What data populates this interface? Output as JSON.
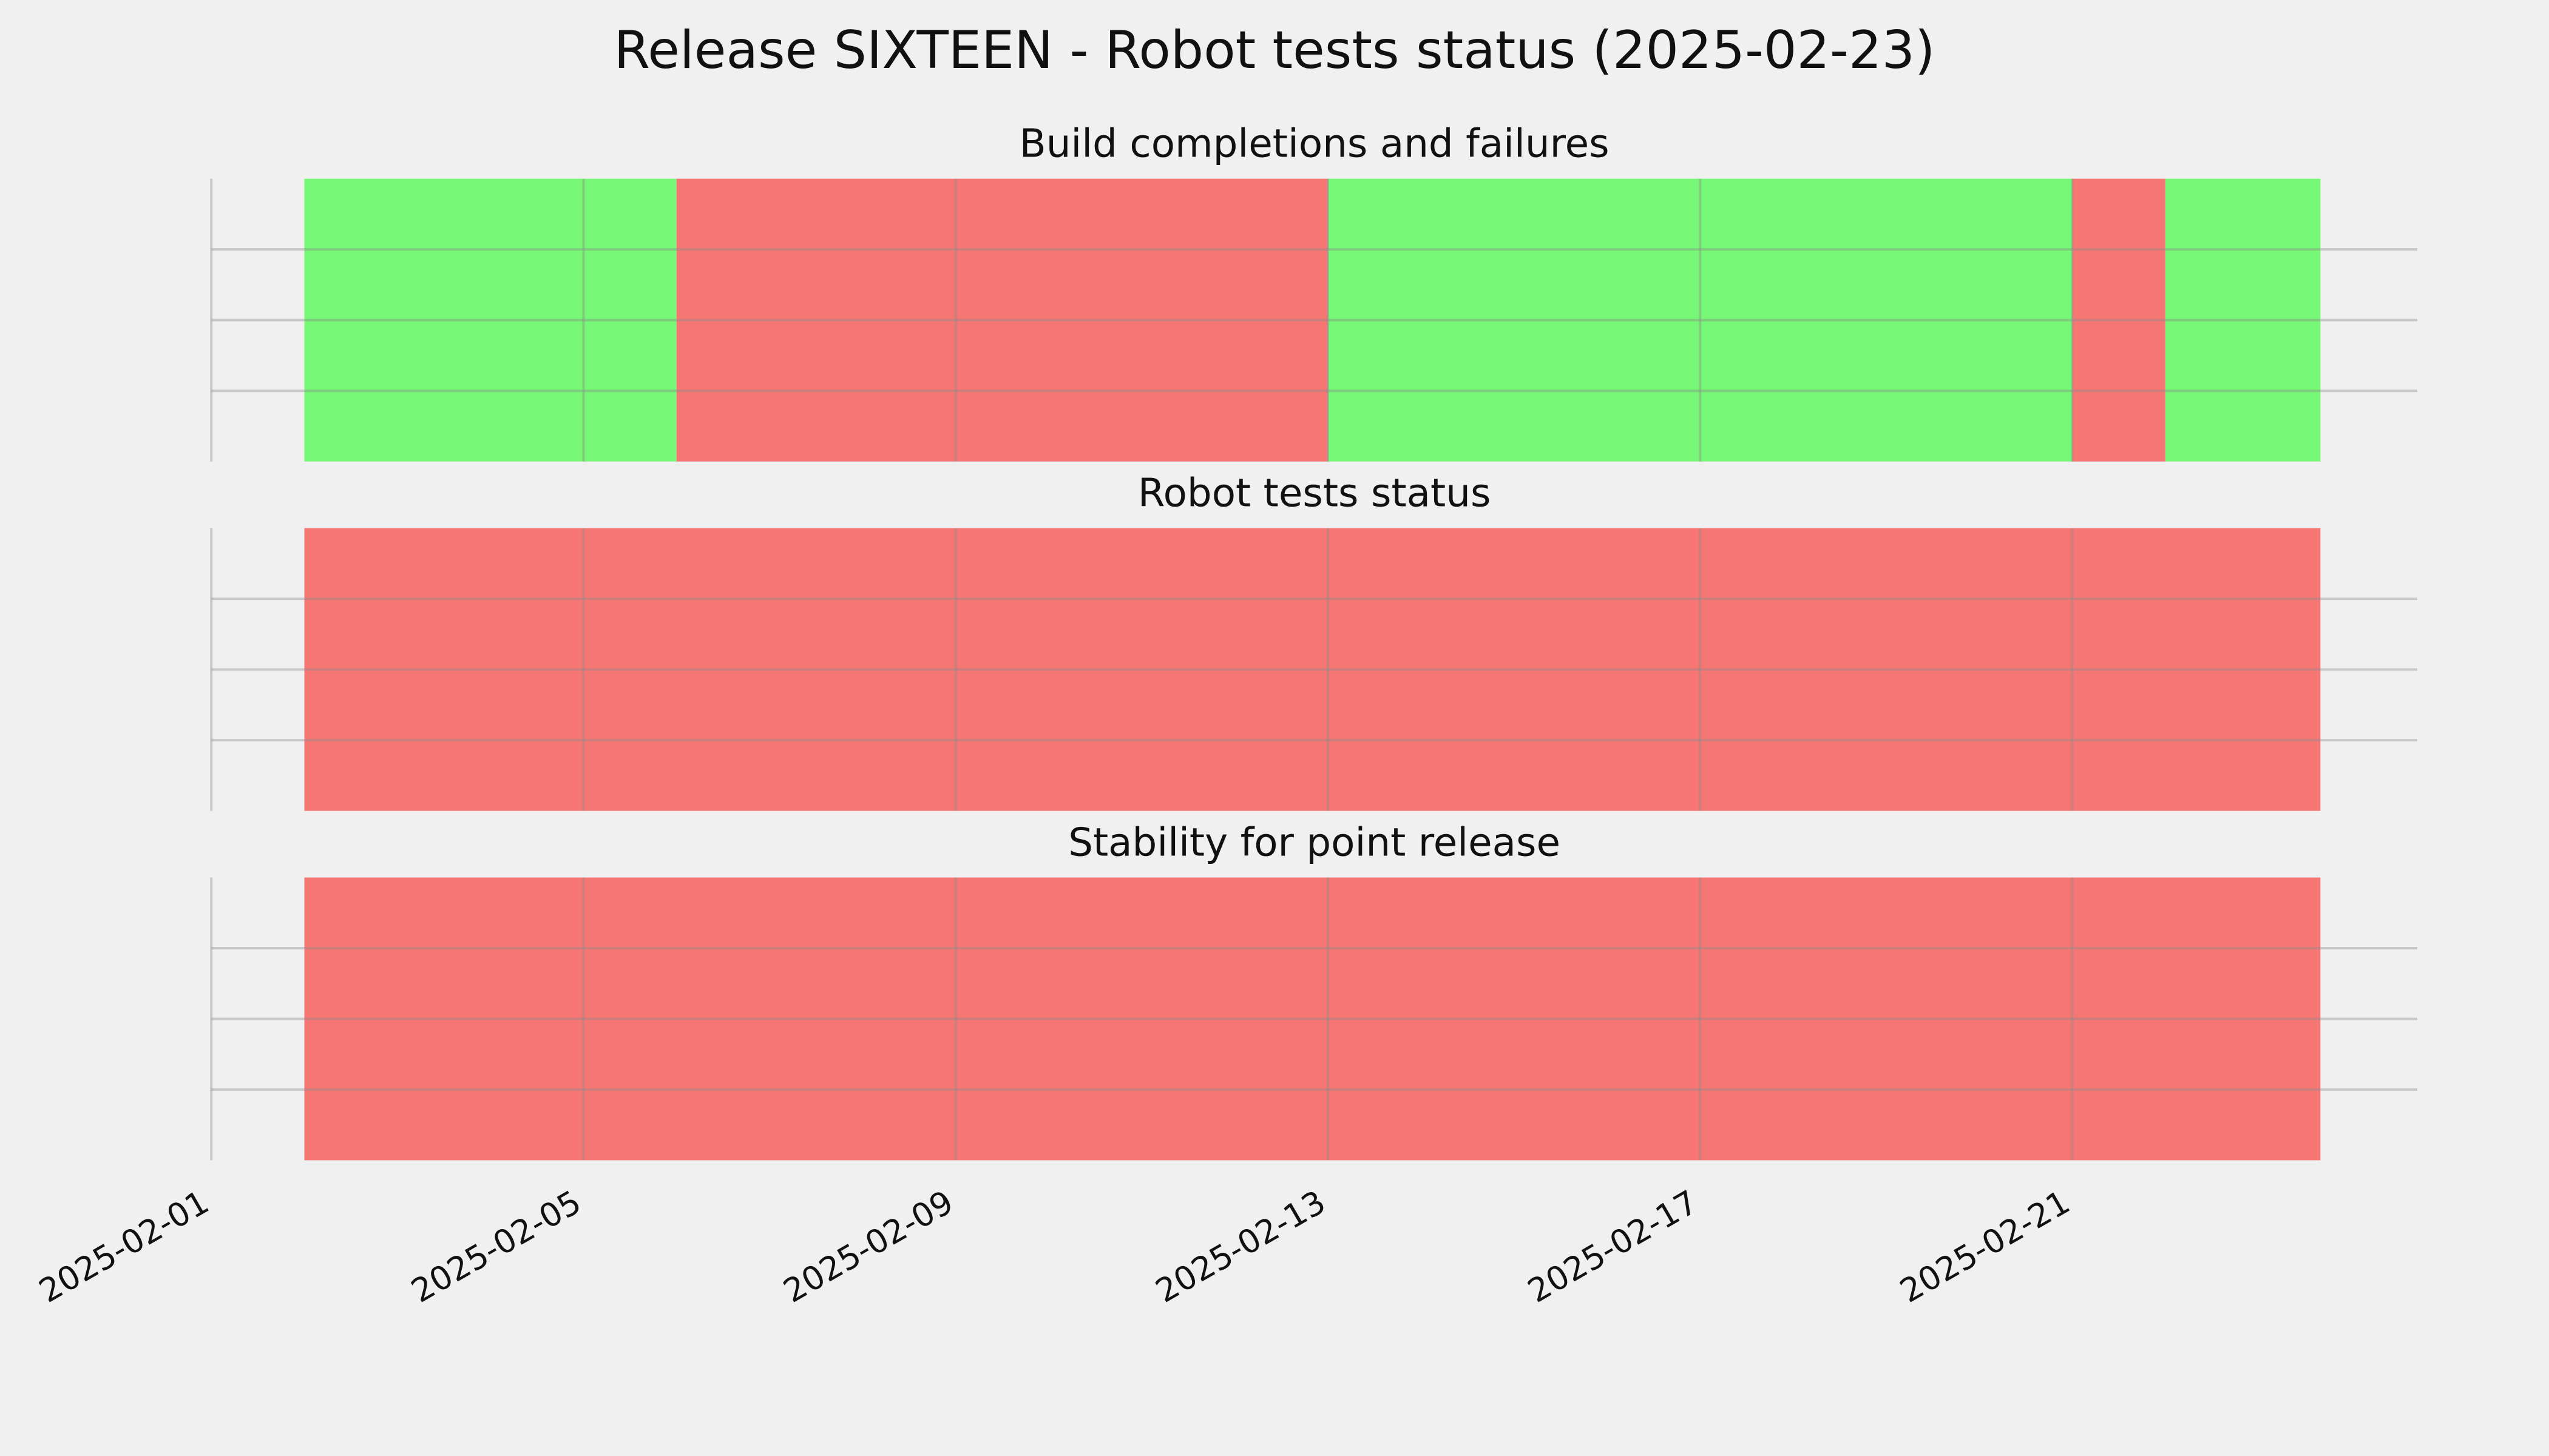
{
  "title": "Release SIXTEEN - Robot tests status (2025-02-23)",
  "chart_data": [
    {
      "type": "span",
      "title": "Build completions and failures",
      "xlim": [
        "2025-02-01",
        "2025-02-24T17:00"
      ],
      "xticks": [
        "2025-02-01",
        "2025-02-05",
        "2025-02-09",
        "2025-02-13",
        "2025-02-17",
        "2025-02-21"
      ],
      "ylim": [
        0,
        1
      ],
      "yticks": [
        0.25,
        0.5,
        0.75
      ],
      "grid": true,
      "spans": [
        {
          "start": "2025-02-02",
          "end": "2025-02-06",
          "color": "#76f776"
        },
        {
          "start": "2025-02-06",
          "end": "2025-02-13",
          "color": "#f67673"
        },
        {
          "start": "2025-02-13",
          "end": "2025-02-21",
          "color": "#76f776"
        },
        {
          "start": "2025-02-21",
          "end": "2025-02-22",
          "color": "#f67673"
        },
        {
          "start": "2025-02-22",
          "end": "2025-02-23T16:00",
          "color": "#76f776"
        }
      ]
    },
    {
      "type": "span",
      "title": "Robot tests status",
      "xlim": [
        "2025-02-01",
        "2025-02-24T17:00"
      ],
      "xticks": [
        "2025-02-01",
        "2025-02-05",
        "2025-02-09",
        "2025-02-13",
        "2025-02-17",
        "2025-02-21"
      ],
      "ylim": [
        0,
        1
      ],
      "yticks": [
        0.25,
        0.5,
        0.75
      ],
      "grid": true,
      "spans": [
        {
          "start": "2025-02-02",
          "end": "2025-02-23T16:00",
          "color": "#f67673"
        }
      ]
    },
    {
      "type": "span",
      "title": "Stability for point release",
      "xlim": [
        "2025-02-01",
        "2025-02-24T17:00"
      ],
      "xticks": [
        "2025-02-01",
        "2025-02-05",
        "2025-02-09",
        "2025-02-13",
        "2025-02-17",
        "2025-02-21"
      ],
      "ylim": [
        0,
        1
      ],
      "yticks": [
        0.25,
        0.5,
        0.75
      ],
      "grid": true,
      "show_xtick_labels": true,
      "spans": [
        {
          "start": "2025-02-02",
          "end": "2025-02-23T16:00",
          "color": "#f67673"
        }
      ]
    }
  ]
}
